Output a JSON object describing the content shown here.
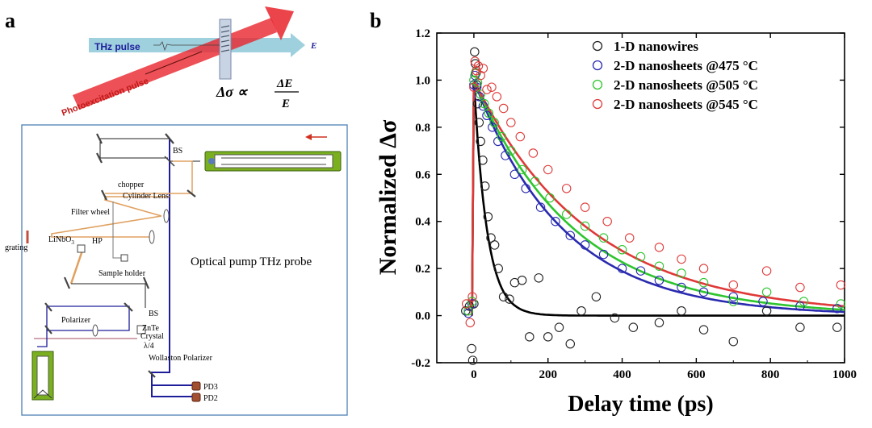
{
  "panel_a": {
    "label": "a",
    "thz_pulse": "THz pulse",
    "photoexcitation_pulse": "Photoexcitation pulse",
    "e_label": "E",
    "formula": {
      "lhs": "Δσ ∝",
      "num": "ΔE",
      "den": "E"
    },
    "setup_title": "Optical pump THz probe",
    "components": {
      "bs_top": "BS",
      "chopper": "chopper",
      "cylinder_lens": "Cylinder Lens",
      "filter_wheel": "Filter wheel",
      "linbo3": "LiNbO",
      "linbo3_sub": "3",
      "hp": "HP",
      "grating": "grating",
      "sample_holder": "Sample holder",
      "bs_bottom": "BS",
      "polarizer": "Polarizer",
      "znte": "ZnTe",
      "crystal": "Crystal",
      "lambda4": "λ/4",
      "wollaston": "Wollaston Polarizer",
      "pd3": "PD3",
      "pd2": "PD2"
    },
    "colors": {
      "pump": "#e8242c",
      "thz": "#8ec8d8",
      "beam_blue": "#1e1e9a",
      "beam_orange": "#e0a060",
      "laser": "#7ab020"
    }
  },
  "panel_b": {
    "label": "b",
    "chart_data": {
      "type": "scatter",
      "xlabel": "Delay time (ps)",
      "ylabel": "Normalized Δσ",
      "xlim": [
        -100,
        1000
      ],
      "ylim": [
        -0.2,
        1.2
      ],
      "xticks": [
        0,
        200,
        400,
        600,
        800,
        1000
      ],
      "xtick_labels": [
        "0",
        "200",
        "400",
        "600",
        "800",
        "1000"
      ],
      "yticks": [
        -0.2,
        0.0,
        0.2,
        0.4,
        0.6,
        0.8,
        1.0,
        1.2
      ],
      "ytick_labels": [
        "-0.2",
        "0.0",
        "0.2",
        "0.4",
        "0.6",
        "0.8",
        "1.0",
        "1.2"
      ],
      "legend_position": "top-right",
      "series": [
        {
          "name": "1-D nanowires",
          "color": "#222222",
          "fit_tau": 35,
          "x": [
            -22,
            -12,
            -6,
            -3,
            0,
            2,
            4,
            6,
            8,
            10,
            14,
            18,
            24,
            30,
            38,
            46,
            56,
            66,
            80,
            96,
            110,
            130,
            150,
            175,
            200,
            230,
            260,
            290,
            330,
            380,
            430,
            500,
            560,
            620,
            700,
            790,
            880,
            980
          ],
          "y": [
            0.02,
            0.04,
            -0.14,
            -0.19,
            0.05,
            1.12,
            1.07,
            1.03,
            0.98,
            0.9,
            0.82,
            0.74,
            0.66,
            0.55,
            0.42,
            0.33,
            0.3,
            0.2,
            0.08,
            0.07,
            0.14,
            0.15,
            -0.09,
            0.16,
            -0.09,
            -0.05,
            -0.12,
            0.02,
            0.08,
            -0.01,
            -0.05,
            -0.03,
            0.02,
            -0.06,
            -0.11,
            0.02,
            -0.05,
            -0.05
          ]
        },
        {
          "name": "2-D nanosheets @475 °C",
          "color": "#2a2ab0",
          "fit_tau": 240,
          "x": [
            -15,
            -5,
            0,
            3,
            8,
            15,
            25,
            35,
            50,
            65,
            85,
            110,
            140,
            180,
            220,
            260,
            300,
            350,
            400,
            450,
            500,
            560,
            620,
            700,
            780,
            880,
            980
          ],
          "y": [
            0.01,
            0.05,
            0.98,
            1.02,
            0.97,
            0.93,
            0.89,
            0.85,
            0.8,
            0.74,
            0.68,
            0.6,
            0.54,
            0.46,
            0.4,
            0.34,
            0.3,
            0.26,
            0.2,
            0.19,
            0.15,
            0.12,
            0.1,
            0.08,
            0.06,
            0.04,
            0.03
          ]
        },
        {
          "name": "2-D nanosheets @505 °C",
          "color": "#2ec52e",
          "fit_tau": 270,
          "x": [
            -15,
            -5,
            0,
            4,
            10,
            18,
            28,
            40,
            55,
            75,
            100,
            130,
            165,
            205,
            250,
            300,
            350,
            400,
            450,
            500,
            560,
            620,
            700,
            790,
            890,
            990
          ],
          "y": [
            0.02,
            0.06,
            1.0,
            1.03,
            0.99,
            0.94,
            0.9,
            0.86,
            0.82,
            0.76,
            0.7,
            0.62,
            0.57,
            0.5,
            0.43,
            0.38,
            0.33,
            0.28,
            0.25,
            0.21,
            0.18,
            0.14,
            0.06,
            0.1,
            0.06,
            0.05
          ]
        },
        {
          "name": "2-D nanosheets @545 °C",
          "color": "#e03838",
          "fit_tau": 310,
          "x": [
            -20,
            -10,
            -4,
            0,
            3,
            7,
            12,
            18,
            25,
            35,
            48,
            62,
            80,
            100,
            125,
            160,
            200,
            250,
            300,
            360,
            420,
            500,
            560,
            620,
            700,
            790,
            880,
            990
          ],
          "y": [
            0.05,
            -0.03,
            0.08,
            0.97,
            1.08,
            1.04,
            1.06,
            1.02,
            1.05,
            0.96,
            0.97,
            0.93,
            0.88,
            0.82,
            0.76,
            0.69,
            0.62,
            0.54,
            0.46,
            0.4,
            0.33,
            0.29,
            0.24,
            0.2,
            0.13,
            0.19,
            0.12,
            0.13
          ]
        }
      ]
    }
  }
}
